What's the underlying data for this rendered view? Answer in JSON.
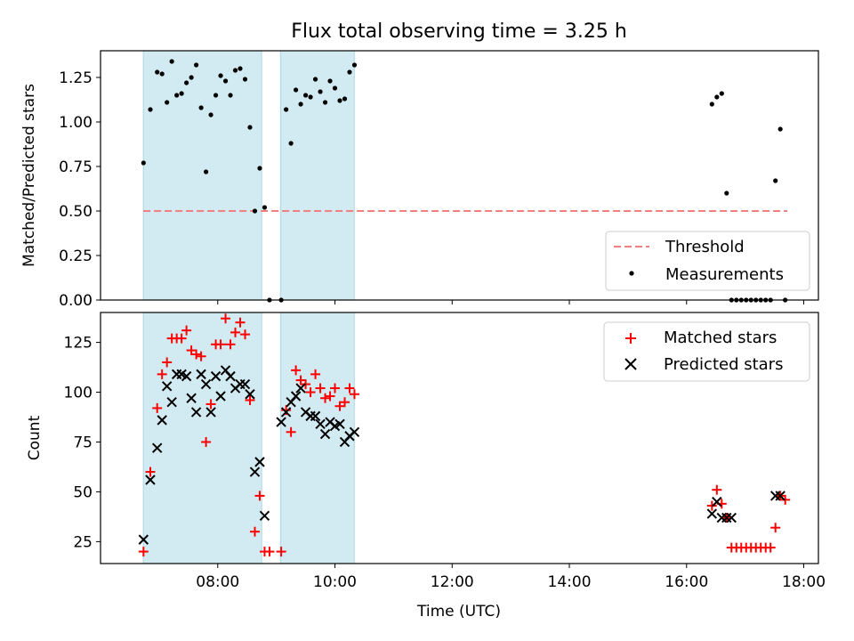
{
  "chart_data": [
    {
      "type": "scatter",
      "title": "Flux total observing time = 3.25 h",
      "xlabel": "",
      "ylabel": "Matched/Predicted stars",
      "ylim": [
        0,
        1.4
      ],
      "yticks": [
        "0.00",
        "0.25",
        "0.50",
        "0.75",
        "1.00",
        "1.25"
      ],
      "shaded_spans_hours": [
        [
          6.73,
          8.75
        ],
        [
          9.07,
          10.33
        ]
      ],
      "threshold": {
        "name": "Threshold",
        "value": 0.5,
        "x_range_hours": [
          6.73,
          17.72
        ],
        "color": "#f08080"
      },
      "legend": {
        "placement": "lower right",
        "entries": [
          "Threshold",
          "Measurements"
        ]
      },
      "series": [
        {
          "name": "Measurements",
          "color": "#000000",
          "marker": "dot",
          "x": [
            "06:44",
            "06:51",
            "06:58",
            "07:03",
            "07:08",
            "07:13",
            "07:18",
            "07:23",
            "07:28",
            "07:33",
            "07:38",
            "07:43",
            "07:48",
            "07:53",
            "07:58",
            "08:03",
            "08:08",
            "08:13",
            "08:18",
            "08:23",
            "08:28",
            "08:33",
            "08:38",
            "08:43",
            "08:48",
            "08:53",
            "09:05",
            "09:10",
            "09:15",
            "09:20",
            "09:25",
            "09:30",
            "09:35",
            "09:40",
            "09:45",
            "09:50",
            "09:55",
            "10:00",
            "10:05",
            "10:10",
            "10:15",
            "10:20",
            "16:26",
            "16:31",
            "16:36",
            "16:41",
            "16:46",
            "16:51",
            "16:56",
            "17:01",
            "17:06",
            "17:11",
            "17:16",
            "17:21",
            "17:26",
            "17:31",
            "17:36",
            "17:41"
          ],
          "y": [
            0.77,
            1.07,
            1.28,
            1.27,
            1.11,
            1.34,
            1.15,
            1.16,
            1.22,
            1.25,
            1.32,
            1.08,
            0.72,
            1.04,
            1.15,
            1.26,
            1.23,
            1.15,
            1.29,
            1.3,
            1.24,
            0.97,
            0.5,
            0.74,
            0.52,
            0.0,
            0.0,
            1.07,
            0.88,
            1.18,
            1.1,
            1.15,
            1.14,
            1.24,
            1.17,
            1.11,
            1.23,
            1.19,
            1.12,
            1.13,
            1.28,
            1.32,
            1.1,
            1.14,
            1.16,
            0.6,
            0.0,
            0.0,
            0.0,
            0.0,
            0.0,
            0.0,
            0.0,
            0.0,
            0.0,
            0.67,
            0.96,
            0.0
          ]
        }
      ]
    },
    {
      "type": "scatter",
      "title": "",
      "xlabel": "Time (UTC)",
      "ylabel": "Count",
      "ylim": [
        14,
        140
      ],
      "yticks": [
        "25",
        "50",
        "75",
        "100",
        "125"
      ],
      "xlim_hours": [
        6.0,
        18.25
      ],
      "xticks": [
        "08:00",
        "10:00",
        "12:00",
        "14:00",
        "16:00",
        "18:00"
      ],
      "legend": {
        "placement": "upper right",
        "entries": [
          "Matched stars",
          "Predicted stars"
        ]
      },
      "series": [
        {
          "name": "Matched stars",
          "color": "#ff0000",
          "marker": "plus",
          "x": [
            "06:44",
            "06:51",
            "06:58",
            "07:03",
            "07:08",
            "07:13",
            "07:18",
            "07:23",
            "07:28",
            "07:33",
            "07:38",
            "07:43",
            "07:48",
            "07:53",
            "07:58",
            "08:03",
            "08:08",
            "08:13",
            "08:18",
            "08:23",
            "08:28",
            "08:33",
            "08:38",
            "08:43",
            "08:48",
            "08:53",
            "09:05",
            "09:10",
            "09:15",
            "09:20",
            "09:25",
            "09:30",
            "09:35",
            "09:40",
            "09:45",
            "09:50",
            "09:55",
            "10:00",
            "10:05",
            "10:10",
            "10:15",
            "10:20",
            "16:26",
            "16:31",
            "16:36",
            "16:41",
            "16:46",
            "16:51",
            "16:56",
            "17:01",
            "17:06",
            "17:11",
            "17:16",
            "17:21",
            "17:26",
            "17:31",
            "17:36",
            "17:41"
          ],
          "y": [
            20,
            60,
            92,
            109,
            115,
            127,
            127,
            127,
            131,
            121,
            119,
            118,
            75,
            94,
            124,
            124,
            137,
            124,
            130,
            135,
            129,
            96,
            30,
            48,
            20,
            20,
            20,
            91,
            80,
            111,
            106,
            104,
            100,
            109,
            102,
            97,
            98,
            102,
            93,
            95,
            102,
            99,
            43,
            51,
            44,
            37,
            22,
            22,
            22,
            22,
            22,
            22,
            22,
            22,
            22,
            32,
            48,
            46
          ]
        },
        {
          "name": "Predicted stars",
          "color": "#000000",
          "marker": "x",
          "x": [
            "06:44",
            "06:51",
            "06:58",
            "07:03",
            "07:08",
            "07:13",
            "07:18",
            "07:23",
            "07:28",
            "07:33",
            "07:38",
            "07:43",
            "07:48",
            "07:53",
            "07:58",
            "08:03",
            "08:08",
            "08:13",
            "08:18",
            "08:23",
            "08:28",
            "08:33",
            "08:38",
            "08:43",
            "08:48",
            "09:05",
            "09:10",
            "09:15",
            "09:20",
            "09:25",
            "09:30",
            "09:35",
            "09:40",
            "09:45",
            "09:50",
            "09:55",
            "10:00",
            "10:05",
            "10:10",
            "10:15",
            "10:20",
            "16:26",
            "16:31",
            "16:36",
            "16:41",
            "16:46",
            "17:31",
            "17:36"
          ],
          "y": [
            26,
            56,
            72,
            86,
            103,
            95,
            109,
            109,
            108,
            97,
            90,
            109,
            104,
            90,
            108,
            98,
            111,
            108,
            102,
            104,
            104,
            99,
            60,
            65,
            38,
            85,
            90,
            95,
            98,
            102,
            90,
            88,
            88,
            84,
            79,
            85,
            83,
            84,
            75,
            78,
            80,
            39,
            45,
            37,
            37,
            37,
            48,
            48
          ]
        }
      ]
    }
  ]
}
